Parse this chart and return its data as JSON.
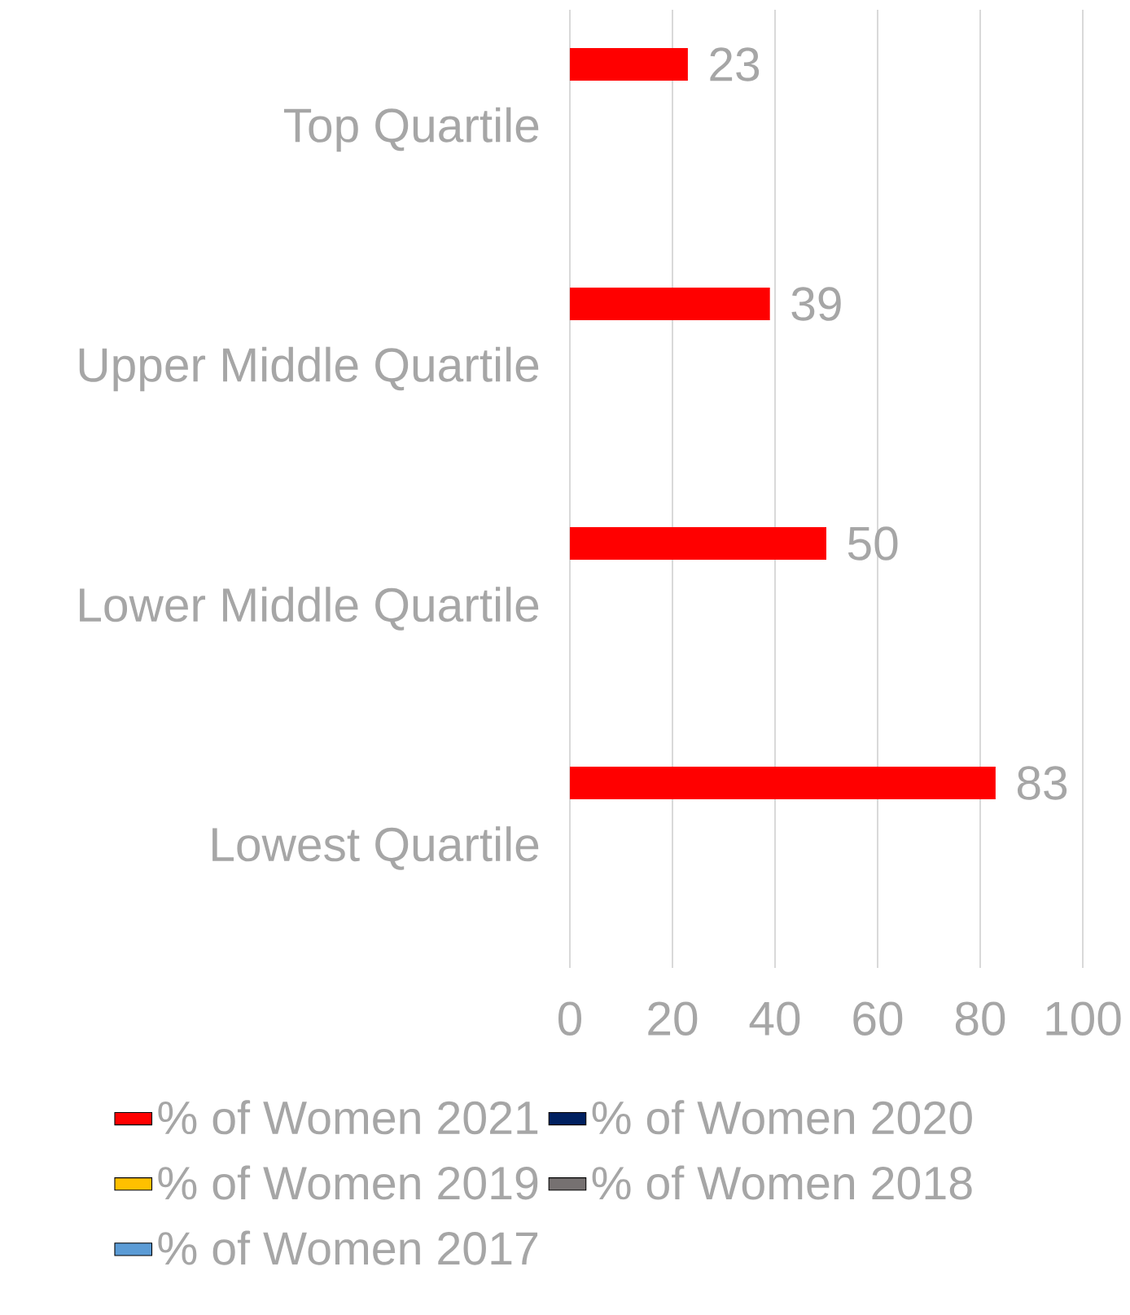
{
  "chart_data": {
    "type": "bar",
    "orientation": "horizontal",
    "categories": [
      "Top Quartile",
      "Upper Middle Quartile",
      "Lower Middle Quartile",
      "Lowest Quartile"
    ],
    "series": [
      {
        "name": "% of Women 2021",
        "color": "#ff0000",
        "values": [
          23,
          39,
          50,
          83
        ]
      },
      {
        "name": "% of Women 2020",
        "color": "#002060",
        "values": [
          null,
          null,
          null,
          null
        ]
      },
      {
        "name": "% of Women 2019",
        "color": "#ffc000",
        "values": [
          null,
          null,
          null,
          null
        ]
      },
      {
        "name": "% of Women 2018",
        "color": "#767171",
        "values": [
          null,
          null,
          null,
          null
        ]
      },
      {
        "name": "% of Women 2017",
        "color": "#5b9bd5",
        "values": [
          null,
          null,
          null,
          null
        ]
      }
    ],
    "xlim": [
      0,
      100
    ],
    "xticks": [
      0,
      20,
      40,
      60,
      80,
      100
    ],
    "grid": "x",
    "legend": "bottom",
    "data_labels": true
  }
}
